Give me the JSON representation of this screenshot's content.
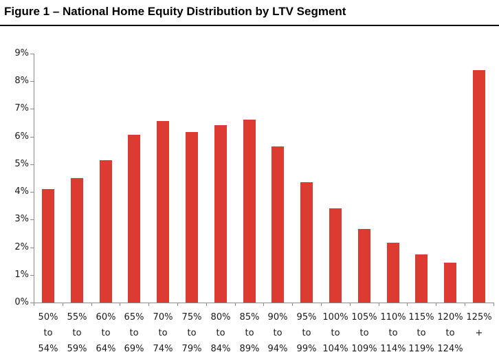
{
  "title": "Figure 1 – National Home Equity Distribution by LTV Segment",
  "chart_data": {
    "type": "bar",
    "title": "Figure 1 – National Home Equity Distribution by LTV Segment",
    "categories": [
      "50% to 54%",
      "55% to 59%",
      "60% to 64%",
      "65% to 69%",
      "70% to 74%",
      "75% to 79%",
      "80% to 84%",
      "85% to 89%",
      "90% to 94%",
      "95% to 99%",
      "100% to 104%",
      "105% to 109%",
      "110% to 114%",
      "115% to 119%",
      "120% to 124%",
      "125% +"
    ],
    "values": [
      4.1,
      4.5,
      5.15,
      6.05,
      6.55,
      6.15,
      6.4,
      6.6,
      5.65,
      4.35,
      3.4,
      2.65,
      2.15,
      1.75,
      1.45,
      8.4
    ],
    "unit": "%",
    "xlabel": "",
    "ylabel": "",
    "ylim": [
      0,
      9
    ],
    "ytick_step": 1,
    "ytick_labels": [
      "0%",
      "1%",
      "2%",
      "3%",
      "4%",
      "5%",
      "6%",
      "7%",
      "8%",
      "9%"
    ],
    "grid": false,
    "legend": "none",
    "colors": {
      "bar": "#DC3B32",
      "axis": "#8C8C8C",
      "tick_text": "#1A1A1A",
      "title_text": "#000000",
      "background": "#FFFFFF"
    }
  }
}
